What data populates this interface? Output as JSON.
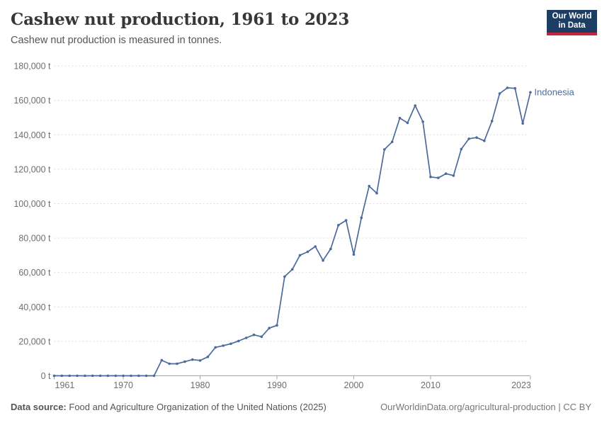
{
  "header": {
    "title": "Cashew nut production, 1961 to 2023",
    "subtitle": "Cashew nut production is measured in tonnes."
  },
  "logo": {
    "line1": "Our World",
    "line2": "in Data",
    "bg_color": "#1d3d63",
    "accent_color": "#c0273c"
  },
  "chart_data": {
    "type": "line",
    "title": "Cashew nut production, 1961 to 2023",
    "xlabel": "",
    "ylabel": "tonnes",
    "unit": "t",
    "xlim": [
      1961,
      2023
    ],
    "ylim": [
      0,
      180000
    ],
    "grid": "horizontal-dashed",
    "legend_position": "end-of-line-label",
    "xticks": [
      1961,
      1970,
      1980,
      1990,
      2000,
      2010,
      2023
    ],
    "yticks": [
      0,
      20000,
      40000,
      60000,
      80000,
      100000,
      120000,
      140000,
      160000,
      180000
    ],
    "ytick_labels": [
      "0 t",
      "20,000 t",
      "40,000 t",
      "60,000 t",
      "80,000 t",
      "100,000 t",
      "120,000 t",
      "140,000 t",
      "160,000 t",
      "180,000 t"
    ],
    "series": [
      {
        "name": "Indonesia",
        "color": "#4c6a9c",
        "x": [
          1961,
          1962,
          1963,
          1964,
          1965,
          1966,
          1967,
          1968,
          1969,
          1970,
          1971,
          1972,
          1973,
          1974,
          1975,
          1976,
          1977,
          1978,
          1979,
          1980,
          1981,
          1982,
          1983,
          1984,
          1985,
          1986,
          1987,
          1988,
          1989,
          1990,
          1991,
          1992,
          1993,
          1994,
          1995,
          1996,
          1997,
          1998,
          1999,
          2000,
          2001,
          2002,
          2003,
          2004,
          2005,
          2006,
          2007,
          2008,
          2009,
          2010,
          2011,
          2012,
          2013,
          2014,
          2015,
          2016,
          2017,
          2018,
          2019,
          2020,
          2021,
          2022,
          2023
        ],
        "values": [
          0,
          0,
          0,
          0,
          0,
          0,
          0,
          0,
          0,
          0,
          0,
          0,
          0,
          0,
          9000,
          7000,
          7000,
          8200,
          9400,
          8900,
          11000,
          16500,
          17500,
          18600,
          20200,
          22000,
          23800,
          22700,
          27700,
          29300,
          57600,
          61800,
          70000,
          72000,
          75100,
          67000,
          73700,
          87500,
          90300,
          70500,
          91800,
          110200,
          106100,
          131500,
          135900,
          149700,
          146900,
          157000,
          147600,
          115500,
          115000,
          117400,
          116300,
          131700,
          137700,
          138400,
          136500,
          148000,
          164000,
          167300,
          167000,
          146600,
          164700
        ]
      }
    ]
  },
  "colors": {
    "line": "#4c6a9c",
    "gridline": "#dcdcdc",
    "axis": "#a5a5a5",
    "tick_text": "#6e6e6e"
  },
  "footer": {
    "source_label": "Data source:",
    "source_text": "Food and Agriculture Organization of the United Nations (2025)",
    "credit": "OurWorldinData.org/agricultural-production | CC BY"
  }
}
